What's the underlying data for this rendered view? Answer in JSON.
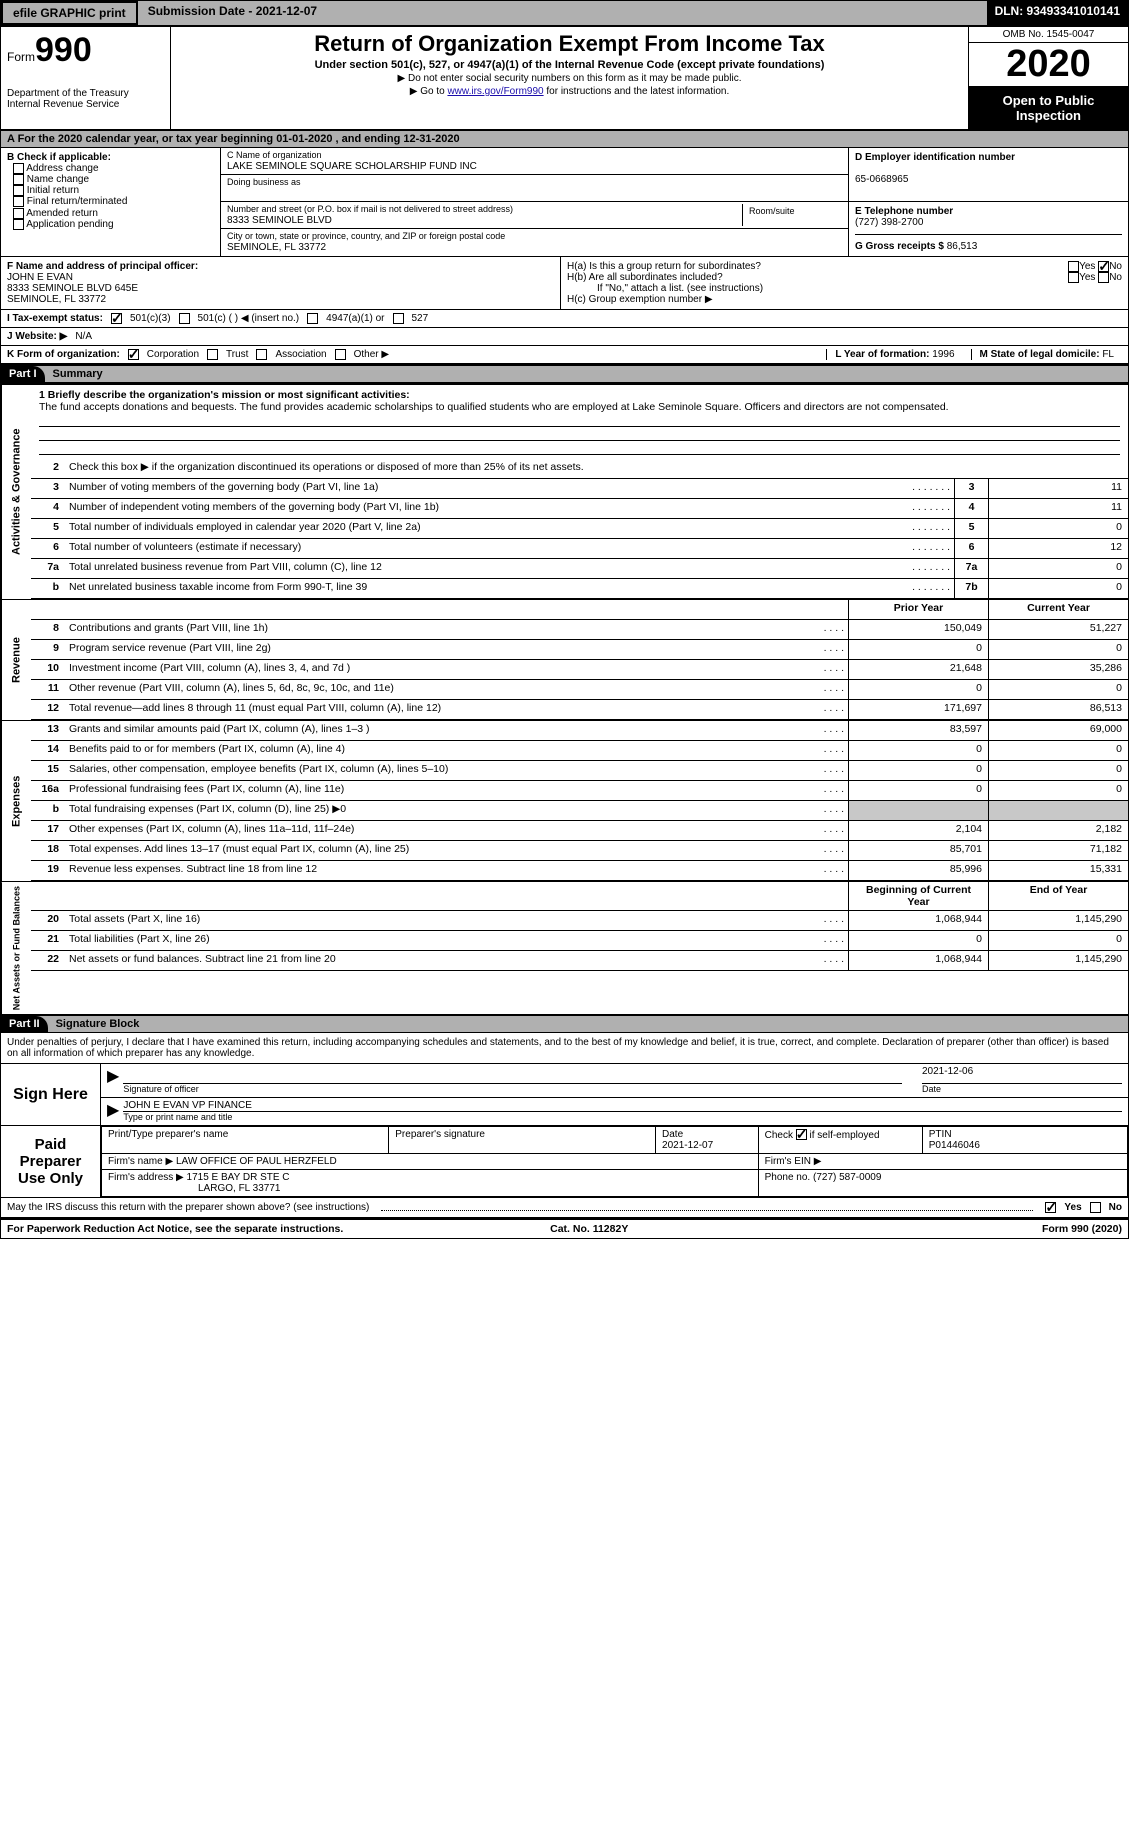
{
  "topbar": {
    "efile": "efile GRAPHIC print",
    "submission": "Submission Date - 2021-12-07",
    "dln": "DLN: 93493341010141"
  },
  "header": {
    "form_label": "Form",
    "form_no": "990",
    "dept": "Department of the Treasury\nInternal Revenue Service",
    "title": "Return of Organization Exempt From Income Tax",
    "sub": "Under section 501(c), 527, or 4947(a)(1) of the Internal Revenue Code (except private foundations)",
    "note1": "▶ Do not enter social security numbers on this form as it may be made public.",
    "note2_pre": "▶ Go to ",
    "note2_link": "www.irs.gov/Form990",
    "note2_post": " for instructions and the latest information.",
    "omb": "OMB No. 1545-0047",
    "year": "2020",
    "open": "Open to Public Inspection"
  },
  "period": "A For the 2020 calendar year, or tax year beginning 01-01-2020    , and ending 12-31-2020",
  "boxB": {
    "label": "B Check if applicable:",
    "items": [
      "Address change",
      "Name change",
      "Initial return",
      "Final return/terminated",
      "Amended return",
      "Application pending"
    ]
  },
  "boxC": {
    "name_lab": "C Name of organization",
    "name": "LAKE SEMINOLE SQUARE SCHOLARSHIP FUND INC",
    "dba_lab": "Doing business as",
    "dba": "",
    "addr_lab": "Number and street (or P.O. box if mail is not delivered to street address)",
    "room_lab": "Room/suite",
    "addr": "8333 SEMINOLE BLVD",
    "city_lab": "City or town, state or province, country, and ZIP or foreign postal code",
    "city": "SEMINOLE, FL  33772"
  },
  "boxD": {
    "lab": "D Employer identification number",
    "val": "65-0668965"
  },
  "boxE": {
    "lab": "E Telephone number",
    "val": "(727) 398-2700"
  },
  "boxG": {
    "lab": "G Gross receipts $",
    "val": "86,513"
  },
  "boxF": {
    "lab": "F  Name and address of principal officer:",
    "name": "JOHN E EVAN",
    "addr1": "8333 SEMINOLE BLVD 645E",
    "addr2": "SEMINOLE, FL  33772"
  },
  "boxH": {
    "a": "H(a)  Is this a group return for subordinates?",
    "a_no": true,
    "b": "H(b)  Are all subordinates included?",
    "b_note": "If \"No,\" attach a list. (see instructions)",
    "c": "H(c)  Group exemption number ▶"
  },
  "boxI": {
    "lab": "I  Tax-exempt status:",
    "c3": "501(c)(3)",
    "c": "501(c) (   ) ◀ (insert no.)",
    "a": "4947(a)(1) or",
    "s": "527"
  },
  "boxJ": {
    "lab": "J  Website: ▶",
    "val": "N/A"
  },
  "boxK": {
    "lab": "K Form of organization:",
    "corp": "Corporation",
    "trust": "Trust",
    "assoc": "Association",
    "other": "Other ▶"
  },
  "boxL": {
    "lab": "L Year of formation:",
    "val": "1996"
  },
  "boxM": {
    "lab": "M State of legal domicile:",
    "val": "FL"
  },
  "part1": {
    "hdr": "Part I",
    "title": "Summary"
  },
  "mission": {
    "q": "1   Briefly describe the organization's mission or most significant activities:",
    "a": "The fund accepts donations and bequests. The fund provides academic scholarships to qualified students who are employed at Lake Seminole Square. Officers and directors are not compensated."
  },
  "gov": {
    "l2": "Check this box ▶       if the organization discontinued its operations or disposed of more than 25% of its net assets.",
    "rows": [
      {
        "n": "3",
        "t": "Number of voting members of the governing body (Part VI, line 1a)",
        "box": "3",
        "v": "11"
      },
      {
        "n": "4",
        "t": "Number of independent voting members of the governing body (Part VI, line 1b)",
        "box": "4",
        "v": "11"
      },
      {
        "n": "5",
        "t": "Total number of individuals employed in calendar year 2020 (Part V, line 2a)",
        "box": "5",
        "v": "0"
      },
      {
        "n": "6",
        "t": "Total number of volunteers (estimate if necessary)",
        "box": "6",
        "v": "12"
      },
      {
        "n": "7a",
        "t": "Total unrelated business revenue from Part VIII, column (C), line 12",
        "box": "7a",
        "v": "0"
      },
      {
        "n": "b",
        "t": "Net unrelated business taxable income from Form 990-T, line 39",
        "box": "7b",
        "v": "0"
      }
    ]
  },
  "colhdrs": {
    "prior": "Prior Year",
    "current": "Current Year",
    "begin": "Beginning of Current Year",
    "end": "End of Year"
  },
  "rev": [
    {
      "n": "8",
      "t": "Contributions and grants (Part VIII, line 1h)",
      "p": "150,049",
      "c": "51,227"
    },
    {
      "n": "9",
      "t": "Program service revenue (Part VIII, line 2g)",
      "p": "0",
      "c": "0"
    },
    {
      "n": "10",
      "t": "Investment income (Part VIII, column (A), lines 3, 4, and 7d )",
      "p": "21,648",
      "c": "35,286"
    },
    {
      "n": "11",
      "t": "Other revenue (Part VIII, column (A), lines 5, 6d, 8c, 9c, 10c, and 11e)",
      "p": "0",
      "c": "0"
    },
    {
      "n": "12",
      "t": "Total revenue—add lines 8 through 11 (must equal Part VIII, column (A), line 12)",
      "p": "171,697",
      "c": "86,513"
    }
  ],
  "exp": [
    {
      "n": "13",
      "t": "Grants and similar amounts paid (Part IX, column (A), lines 1–3 )",
      "p": "83,597",
      "c": "69,000"
    },
    {
      "n": "14",
      "t": "Benefits paid to or for members (Part IX, column (A), line 4)",
      "p": "0",
      "c": "0"
    },
    {
      "n": "15",
      "t": "Salaries, other compensation, employee benefits (Part IX, column (A), lines 5–10)",
      "p": "0",
      "c": "0"
    },
    {
      "n": "16a",
      "t": "Professional fundraising fees (Part IX, column (A), line 11e)",
      "p": "0",
      "c": "0"
    },
    {
      "n": "b",
      "t": "Total fundraising expenses (Part IX, column (D), line 25) ▶0",
      "p": "",
      "c": "",
      "grey": true
    },
    {
      "n": "17",
      "t": "Other expenses (Part IX, column (A), lines 11a–11d, 11f–24e)",
      "p": "2,104",
      "c": "2,182"
    },
    {
      "n": "18",
      "t": "Total expenses. Add lines 13–17 (must equal Part IX, column (A), line 25)",
      "p": "85,701",
      "c": "71,182"
    },
    {
      "n": "19",
      "t": "Revenue less expenses. Subtract line 18 from line 12",
      "p": "85,996",
      "c": "15,331"
    }
  ],
  "net": [
    {
      "n": "20",
      "t": "Total assets (Part X, line 16)",
      "p": "1,068,944",
      "c": "1,145,290"
    },
    {
      "n": "21",
      "t": "Total liabilities (Part X, line 26)",
      "p": "0",
      "c": "0"
    },
    {
      "n": "22",
      "t": "Net assets or fund balances. Subtract line 21 from line 20",
      "p": "1,068,944",
      "c": "1,145,290"
    }
  ],
  "side": {
    "gov": "Activities & Governance",
    "rev": "Revenue",
    "exp": "Expenses",
    "net": "Net Assets or Fund Balances"
  },
  "part2": {
    "hdr": "Part II",
    "title": "Signature Block"
  },
  "penalties": "Under penalties of perjury, I declare that I have examined this return, including accompanying schedules and statements, and to the best of my knowledge and belief, it is true, correct, and complete. Declaration of preparer (other than officer) is based on all information of which preparer has any knowledge.",
  "sign": {
    "here": "Sign Here",
    "sig_lab": "Signature of officer",
    "date_lab": "Date",
    "date": "2021-12-06",
    "name": "JOHN E EVAN  VP FINANCE",
    "name_lab": "Type or print name and title"
  },
  "prep": {
    "side": "Paid Preparer Use Only",
    "h1": "Print/Type preparer's name",
    "h2": "Preparer's signature",
    "h3": "Date",
    "h3v": "2021-12-07",
    "h4": "Check        if self-employed",
    "h5": "PTIN",
    "h5v": "P01446046",
    "firm_lab": "Firm's name   ▶",
    "firm": "LAW OFFICE OF PAUL HERZFELD",
    "ein_lab": "Firm's EIN ▶",
    "addr_lab": "Firm's address ▶",
    "addr": "1715 E BAY DR STE C",
    "city": "LARGO, FL  33771",
    "phone_lab": "Phone no.",
    "phone": "(727) 587-0009"
  },
  "discuss": {
    "q": "May the IRS discuss this return with the preparer shown above? (see instructions)",
    "yes": "Yes",
    "no": "No"
  },
  "footer": {
    "l": "For Paperwork Reduction Act Notice, see the separate instructions.",
    "m": "Cat. No. 11282Y",
    "r": "Form 990 (2020)"
  }
}
